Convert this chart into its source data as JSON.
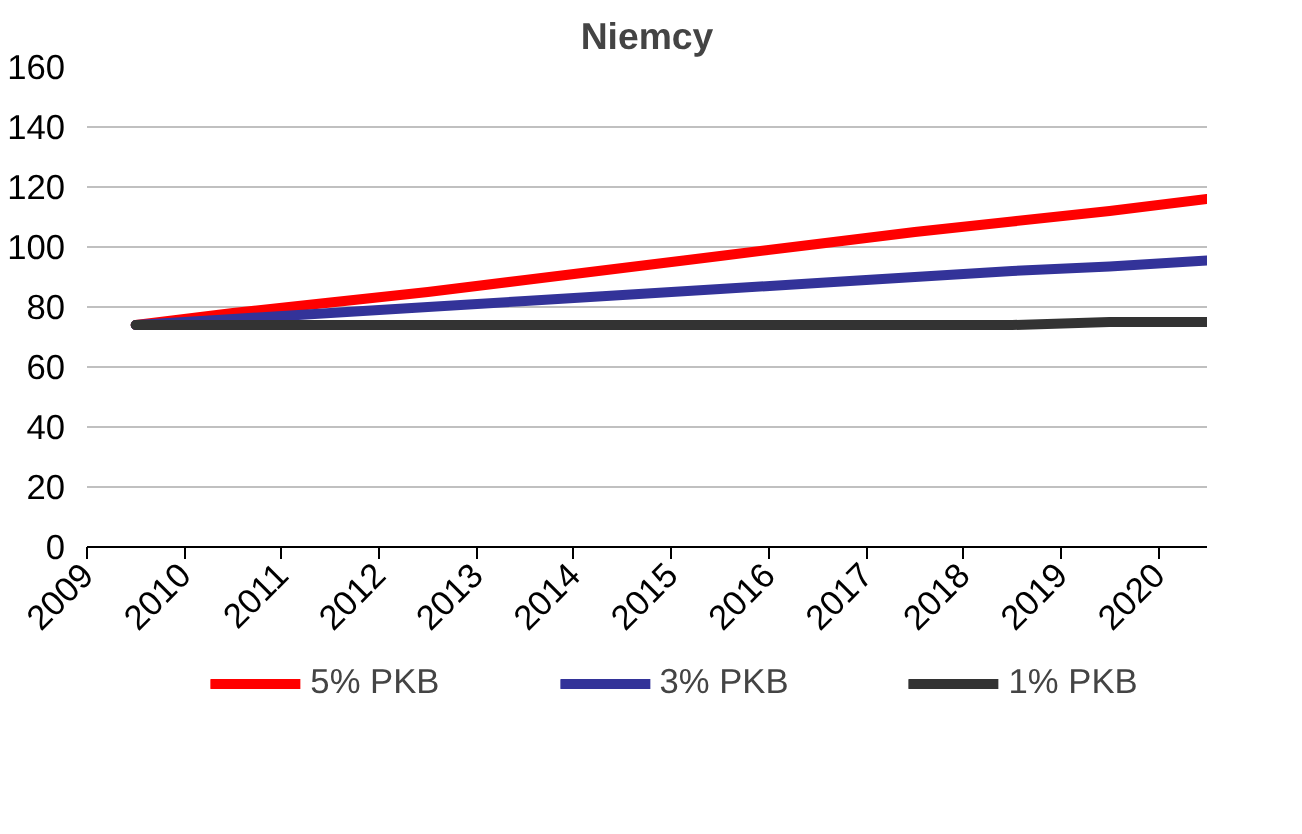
{
  "chart_data": {
    "type": "line",
    "title": "Niemcy",
    "x": [
      2009.5,
      2010.5,
      2011.5,
      2012.5,
      2013.5,
      2014.5,
      2015.5,
      2016.5,
      2017.5,
      2018.5,
      2019.5,
      2020.5
    ],
    "series": [
      {
        "name": "5% PKB",
        "color": "#ff0000",
        "values": [
          74,
          78,
          81.5,
          85,
          89,
          93,
          97,
          101,
          105,
          108.5,
          112,
          116
        ]
      },
      {
        "name": "3% PKB",
        "color": "#333399",
        "values": [
          74,
          76,
          78,
          80,
          82,
          84,
          86,
          88,
          90,
          92,
          93.5,
          95.5
        ]
      },
      {
        "name": "1% PKB",
        "color": "#333333",
        "values": [
          74,
          74,
          74,
          74,
          74,
          74,
          74,
          74,
          74,
          74,
          75,
          75
        ]
      }
    ],
    "xlim": [
      2009,
      2020.5
    ],
    "xticks": [
      2009,
      2010,
      2011,
      2012,
      2013,
      2014,
      2015,
      2016,
      2017,
      2018,
      2019,
      2020
    ],
    "ylim": [
      0,
      160
    ],
    "yticks": [
      0,
      20,
      40,
      60,
      80,
      100,
      120,
      140,
      160
    ],
    "grid": "y",
    "legend": "bottom",
    "marker": "none",
    "line_style": "solid"
  }
}
